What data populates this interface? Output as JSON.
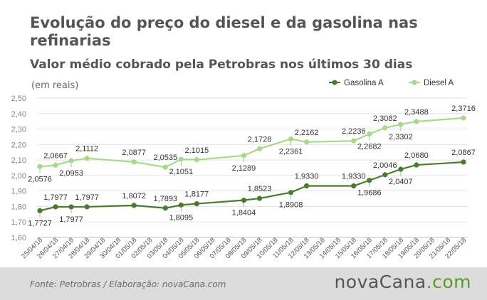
{
  "title": "Evolução do preço do diesel e da gasolina nas refinarias",
  "subtitle": "Valor médio cobrado pela Petrobras nos últimos 30 dias",
  "units": "(em reais)",
  "source": "Fonte:  Petrobras  / Elaboração:  novaCana.com",
  "brand": {
    "part1": "nova",
    "part2": "Cana",
    "part3": ".com"
  },
  "colors": {
    "gasolina": "#4a7a2c",
    "diesel": "#a8d88a",
    "grid": "#e4e4e4",
    "footer": "#dcdcdc",
    "brand_accent": "#5a9a2c"
  },
  "chart_data": {
    "type": "line",
    "categories": [
      "25/04/18",
      "26/04/18",
      "27/04/18",
      "28/04/18",
      "29/04/18",
      "30/04/18",
      "01/05/18",
      "02/05/18",
      "03/05/18",
      "04/05/18",
      "05/05/18",
      "06/05/18",
      "07/05/18",
      "08/05/18",
      "09/05/18",
      "10/05/18",
      "11/05/18",
      "12/05/18",
      "13/05/18",
      "14/05/18",
      "15/05/18",
      "16/05/18",
      "17/05/18",
      "18/05/18",
      "19/05/18",
      "20/05/18",
      "21/05/18",
      "22/05/18"
    ],
    "yticks": [
      "1,60",
      "1,70",
      "1,80",
      "1,90",
      "2,00",
      "2,10",
      "2,20",
      "2,30",
      "2,40",
      "2,50"
    ],
    "ylim": [
      1.6,
      2.5
    ],
    "grid": true,
    "legend_position": "top-right",
    "series": [
      {
        "name": "Gasolina A",
        "color": "#4a7a2c",
        "points": [
          {
            "i": 0,
            "v": 1.7727,
            "label": "1,7727",
            "pos": "below"
          },
          {
            "i": 1,
            "v": 1.7977,
            "label": "1,7977",
            "pos": "above"
          },
          {
            "i": 2,
            "v": 1.7977,
            "label": "1,7977",
            "pos": "below"
          },
          {
            "i": 3,
            "v": 1.7977,
            "label": "1,7977",
            "pos": "above"
          },
          {
            "i": 6,
            "v": 1.8072,
            "label": "1,8072",
            "pos": "above"
          },
          {
            "i": 8,
            "v": 1.7893,
            "label": "1,7893",
            "pos": "above"
          },
          {
            "i": 9,
            "v": 1.8095,
            "label": "1,8095",
            "pos": "below"
          },
          {
            "i": 10,
            "v": 1.8177,
            "label": "1,8177",
            "pos": "above"
          },
          {
            "i": 13,
            "v": 1.8404,
            "label": "1,8404",
            "pos": "below"
          },
          {
            "i": 14,
            "v": 1.8523,
            "label": "1,8523",
            "pos": "above"
          },
          {
            "i": 16,
            "v": 1.8908,
            "label": "1,8908",
            "pos": "below"
          },
          {
            "i": 17,
            "v": 1.933,
            "label": "1,9330",
            "pos": "above"
          },
          {
            "i": 20,
            "v": 1.933,
            "label": "1,9330",
            "pos": "above"
          },
          {
            "i": 21,
            "v": 1.9686,
            "label": "1,9686",
            "pos": "below"
          },
          {
            "i": 22,
            "v": 2.0046,
            "label": "2,0046",
            "pos": "above"
          },
          {
            "i": 23,
            "v": 2.0407,
            "label": "2,0407",
            "pos": "below"
          },
          {
            "i": 24,
            "v": 2.068,
            "label": "2,0680",
            "pos": "above"
          },
          {
            "i": 27,
            "v": 2.0867,
            "label": "2,0867",
            "pos": "above"
          }
        ]
      },
      {
        "name": "Diesel A",
        "color": "#a8d88a",
        "points": [
          {
            "i": 0,
            "v": 2.0576,
            "label": "2,0576",
            "pos": "below"
          },
          {
            "i": 1,
            "v": 2.0667,
            "label": "2,0667",
            "pos": "above"
          },
          {
            "i": 2,
            "v": 2.0953,
            "label": "2,0953",
            "pos": "below"
          },
          {
            "i": 3,
            "v": 2.1112,
            "label": "2,1112",
            "pos": "above"
          },
          {
            "i": 6,
            "v": 2.0877,
            "label": "2,0877",
            "pos": "above"
          },
          {
            "i": 8,
            "v": 2.0535,
            "label": "2,0535",
            "pos": "above"
          },
          {
            "i": 9,
            "v": 2.1051,
            "label": "2,1051",
            "pos": "below"
          },
          {
            "i": 10,
            "v": 2.1015,
            "label": "2,1015",
            "pos": "above"
          },
          {
            "i": 13,
            "v": 2.1289,
            "label": "2,1289",
            "pos": "below"
          },
          {
            "i": 14,
            "v": 2.1728,
            "label": "2,1728",
            "pos": "above"
          },
          {
            "i": 16,
            "v": 2.2361,
            "label": "2,2361",
            "pos": "below"
          },
          {
            "i": 17,
            "v": 2.2162,
            "label": "2,2162",
            "pos": "above"
          },
          {
            "i": 20,
            "v": 2.2236,
            "label": "2,2236",
            "pos": "above"
          },
          {
            "i": 21,
            "v": 2.2682,
            "label": "2,2682",
            "pos": "below"
          },
          {
            "i": 22,
            "v": 2.3082,
            "label": "2,3082",
            "pos": "above"
          },
          {
            "i": 23,
            "v": 2.3302,
            "label": "2,3302",
            "pos": "below"
          },
          {
            "i": 24,
            "v": 2.3488,
            "label": "2,3488",
            "pos": "above"
          },
          {
            "i": 27,
            "v": 2.3716,
            "label": "2,3716",
            "pos": "above"
          }
        ]
      }
    ]
  }
}
